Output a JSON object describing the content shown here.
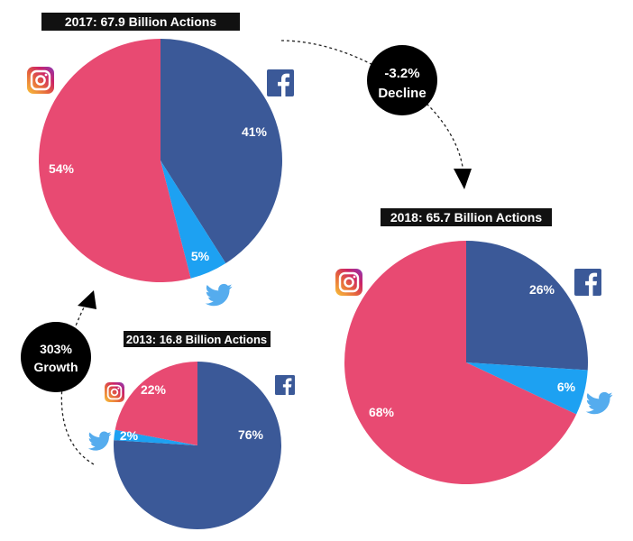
{
  "colors": {
    "facebook": "#3b5998",
    "twitter": "#1da1f2",
    "instagram": "#e84a72",
    "twitter_icon": "#55acee",
    "label_bg": "#111111"
  },
  "icons": {
    "facebook": "facebook-icon",
    "twitter": "twitter-icon",
    "instagram": "instagram-icon"
  },
  "callouts": {
    "decline": {
      "line1": "-3.2%",
      "line2": "Decline"
    },
    "growth": {
      "line1": "303%",
      "line2": "Growth"
    }
  },
  "chart_data": [
    {
      "type": "pie",
      "title": "2017: 67.9 Billion Actions",
      "slices": [
        {
          "name": "facebook",
          "value": 41,
          "label": "41%"
        },
        {
          "name": "twitter",
          "value": 5,
          "label": "5%"
        },
        {
          "name": "instagram",
          "value": 54,
          "label": "54%"
        }
      ]
    },
    {
      "type": "pie",
      "title": "2018: 65.7 Billion Actions",
      "slices": [
        {
          "name": "facebook",
          "value": 26,
          "label": "26%"
        },
        {
          "name": "twitter",
          "value": 6,
          "label": "6%"
        },
        {
          "name": "instagram",
          "value": 68,
          "label": "68%"
        }
      ]
    },
    {
      "type": "pie",
      "title": "2013: 16.8 Billion Actions",
      "slices": [
        {
          "name": "facebook",
          "value": 76,
          "label": "76%"
        },
        {
          "name": "twitter",
          "value": 2,
          "label": "2%"
        },
        {
          "name": "instagram",
          "value": 22,
          "label": "22%"
        }
      ]
    }
  ]
}
